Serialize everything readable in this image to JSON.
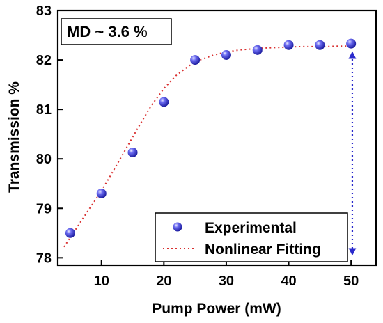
{
  "chart_data": {
    "type": "scatter",
    "title": "",
    "xlabel": "Pump Power (mW)",
    "ylabel": "Transmission %",
    "xlim": [
      3,
      54
    ],
    "ylim": [
      77.85,
      83
    ],
    "xticks": [
      10,
      20,
      30,
      40,
      50
    ],
    "yticks": [
      78,
      79,
      80,
      81,
      82,
      83
    ],
    "grid": false,
    "legend_position": "bottom-right",
    "annotation": "MD ~ 3.6 %",
    "series": [
      {
        "name": "Experimental",
        "style": "markers",
        "color": "#3c3cd8",
        "x": [
          5,
          10,
          15,
          20,
          25,
          30,
          35,
          40,
          45,
          50
        ],
        "y": [
          78.5,
          79.3,
          80.13,
          81.15,
          82.0,
          82.1,
          82.2,
          82.3,
          82.3,
          82.33
        ]
      },
      {
        "name": "Nonlinear Fitting",
        "style": "dotted-line",
        "color": "#d93030",
        "x": [
          4,
          6,
          8,
          10,
          12,
          14,
          16,
          18,
          20,
          22,
          24,
          26,
          28,
          30,
          32,
          34,
          36,
          38,
          40,
          42,
          44,
          46,
          48,
          50
        ],
        "y": [
          78.22,
          78.6,
          78.98,
          79.35,
          79.78,
          80.22,
          80.66,
          81.08,
          81.42,
          81.69,
          81.88,
          82.01,
          82.1,
          82.16,
          82.2,
          82.22,
          82.24,
          82.25,
          82.26,
          82.27,
          82.27,
          82.27,
          82.28,
          82.28
        ]
      }
    ],
    "range_arrow": {
      "x": 50.2,
      "y_from": 78.12,
      "y_to": 82.1,
      "color": "#2a2acc"
    }
  }
}
